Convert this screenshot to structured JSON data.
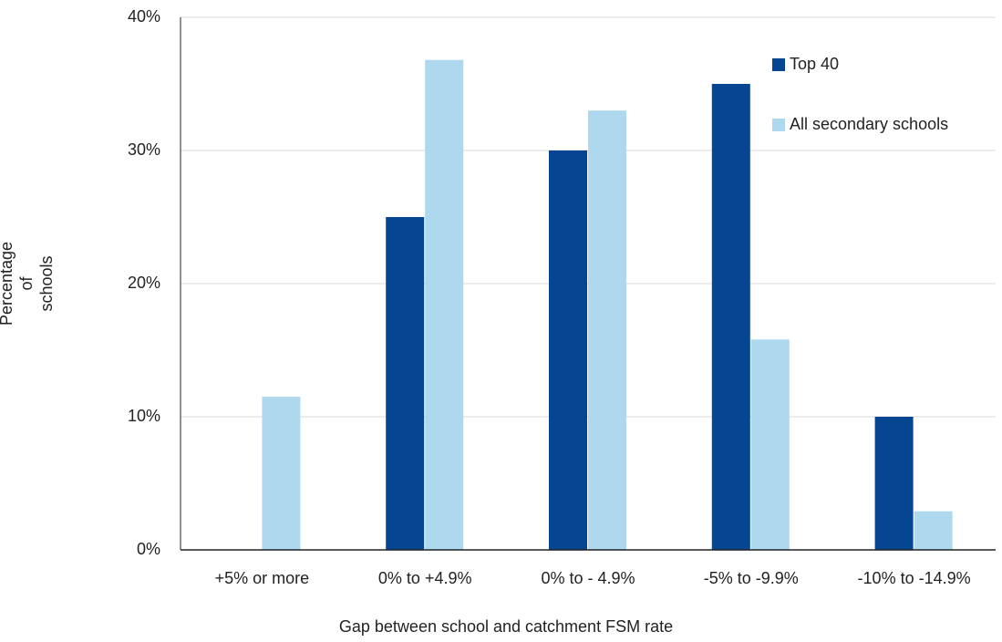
{
  "chart_data": {
    "type": "bar",
    "x_label": "Gap between school and catchment FSM rate",
    "y_label": [
      "Percentage",
      "of",
      "schools"
    ],
    "categories": [
      "+5% or more",
      "0% to +4.9%",
      "0% to - 4.9%",
      "-5% to -9.9%",
      "-10% to -14.9%"
    ],
    "series": [
      {
        "name": "Top 40",
        "color": "#064591",
        "values": [
          0,
          25,
          30,
          35,
          10
        ]
      },
      {
        "name": "All secondary schools",
        "color": "#add8ee",
        "values": [
          11.5,
          36.8,
          33,
          15.8,
          2.9
        ]
      }
    ],
    "ylim": [
      0,
      40
    ],
    "yticks": [
      {
        "value": 0,
        "label": "0%"
      },
      {
        "value": 10,
        "label": "10%"
      },
      {
        "value": 20,
        "label": "20%"
      },
      {
        "value": 30,
        "label": "30%"
      },
      {
        "value": 40,
        "label": "40%"
      }
    ],
    "grid": true,
    "legend": "top-right"
  }
}
